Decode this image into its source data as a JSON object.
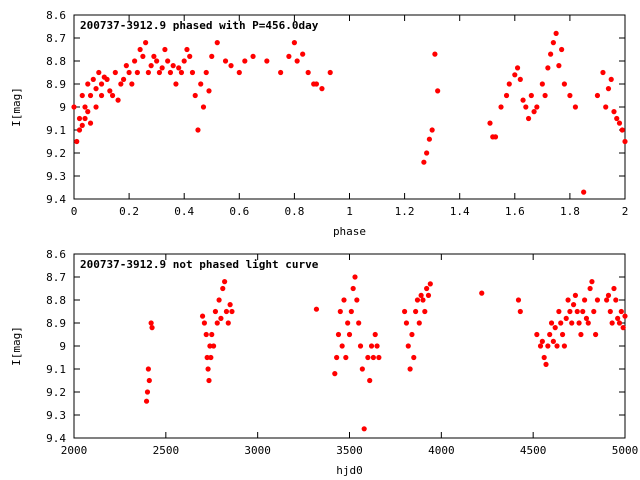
{
  "chart_data": [
    {
      "type": "scatter",
      "title": "200737-3912.9 phased with P=456.0day",
      "xlabel": "phase",
      "ylabel": "I[mag]",
      "xlim": [
        0,
        2
      ],
      "ylim": [
        9.4,
        8.6
      ],
      "y_inverted": true,
      "x_ticks": [
        "0",
        "0.2",
        "0.4",
        "0.6",
        "0.8",
        "1",
        "1.2",
        "1.4",
        "1.6",
        "1.8",
        "2"
      ],
      "y_ticks": [
        "8.6",
        "8.7",
        "8.8",
        "8.9",
        "9",
        "9.1",
        "9.2",
        "9.3",
        "9.4"
      ],
      "grid": false,
      "marker": "filled circle",
      "color": "#ff0000",
      "series": [
        {
          "x": [
            0.0,
            0.01,
            0.02,
            0.02,
            0.03,
            0.03,
            0.04,
            0.04,
            0.05,
            0.05,
            0.06,
            0.06,
            0.07,
            0.08,
            0.08,
            0.09,
            0.1,
            0.1,
            0.11,
            0.12,
            0.13,
            0.14,
            0.15,
            0.16,
            0.17,
            0.18,
            0.19,
            0.2,
            0.21,
            0.22,
            0.23,
            0.24,
            0.25,
            0.26,
            0.27,
            0.28,
            0.29,
            0.3,
            0.31,
            0.32,
            0.33,
            0.34,
            0.35,
            0.36,
            0.37,
            0.38,
            0.39,
            0.4,
            0.41,
            0.42,
            0.43,
            0.44,
            0.45,
            0.46,
            0.47,
            0.48,
            0.49,
            0.5,
            0.52,
            0.55,
            0.57,
            0.6,
            0.62,
            0.65,
            0.7,
            0.75,
            0.78,
            0.8,
            0.81,
            0.83,
            0.85,
            0.87,
            0.88,
            0.9,
            0.93,
            1.27,
            1.28,
            1.29,
            1.3,
            1.31,
            1.32,
            1.51,
            1.52,
            1.53,
            1.55,
            1.57,
            1.58,
            1.6,
            1.61,
            1.62,
            1.63,
            1.64,
            1.65,
            1.66,
            1.67,
            1.68,
            1.7,
            1.71,
            1.72,
            1.73,
            1.74,
            1.75,
            1.76,
            1.77,
            1.78,
            1.8,
            1.82,
            1.85,
            1.9,
            1.92,
            1.93,
            1.94,
            1.95,
            1.96,
            1.97,
            1.98,
            1.99,
            2.0
          ],
          "y": [
            9.0,
            9.15,
            9.05,
            9.1,
            8.95,
            9.08,
            9.0,
            9.05,
            8.9,
            9.02,
            8.95,
            9.07,
            8.88,
            8.92,
            9.0,
            8.85,
            8.9,
            8.95,
            8.87,
            8.88,
            8.93,
            8.95,
            8.85,
            8.97,
            8.9,
            8.88,
            8.82,
            8.85,
            8.9,
            8.8,
            8.85,
            8.75,
            8.78,
            8.72,
            8.85,
            8.82,
            8.78,
            8.8,
            8.85,
            8.83,
            8.75,
            8.8,
            8.85,
            8.82,
            8.9,
            8.83,
            8.85,
            8.8,
            8.75,
            8.78,
            8.85,
            8.95,
            9.1,
            8.9,
            9.0,
            8.85,
            8.93,
            8.78,
            8.72,
            8.8,
            8.82,
            8.85,
            8.8,
            8.78,
            8.8,
            8.85,
            8.78,
            8.72,
            8.8,
            8.77,
            8.85,
            8.9,
            8.9,
            8.92,
            8.85,
            9.24,
            9.2,
            9.14,
            9.1,
            8.77,
            8.93,
            9.07,
            9.13,
            9.13,
            9.0,
            8.95,
            8.9,
            8.86,
            8.83,
            8.88,
            8.97,
            9.0,
            9.05,
            8.95,
            9.02,
            9.0,
            8.9,
            8.95,
            8.83,
            8.77,
            8.72,
            8.68,
            8.82,
            8.75,
            8.9,
            8.95,
            9.0,
            9.37,
            8.95,
            8.85,
            9.0,
            8.92,
            8.88,
            9.02,
            9.05,
            9.07,
            9.1,
            9.15
          ]
        }
      ]
    },
    {
      "type": "scatter",
      "title": "200737-3912.9 not phased light curve",
      "xlabel": "hjd0",
      "ylabel": "I[mag]",
      "xlim": [
        2000,
        5000
      ],
      "ylim": [
        9.4,
        8.6
      ],
      "y_inverted": true,
      "x_ticks": [
        "2000",
        "2500",
        "3000",
        "3500",
        "4000",
        "4500",
        "5000"
      ],
      "y_ticks": [
        "8.6",
        "8.7",
        "8.8",
        "8.9",
        "9",
        "9.1",
        "9.2",
        "9.3",
        "9.4"
      ],
      "grid": false,
      "marker": "filled circle",
      "color": "#ff0000",
      "series": [
        {
          "x": [
            2395,
            2400,
            2405,
            2410,
            2420,
            2425,
            2700,
            2710,
            2720,
            2725,
            2730,
            2735,
            2740,
            2745,
            2750,
            2760,
            2770,
            2780,
            2790,
            2800,
            2810,
            2820,
            2830,
            2840,
            2850,
            2860,
            3320,
            3420,
            3430,
            3440,
            3450,
            3460,
            3470,
            3480,
            3490,
            3500,
            3510,
            3520,
            3530,
            3540,
            3550,
            3560,
            3570,
            3580,
            3600,
            3610,
            3620,
            3630,
            3640,
            3650,
            3660,
            3800,
            3810,
            3820,
            3830,
            3840,
            3850,
            3860,
            3870,
            3880,
            3890,
            3900,
            3910,
            3920,
            3930,
            3940,
            4220,
            4420,
            4430,
            4520,
            4540,
            4550,
            4560,
            4570,
            4580,
            4590,
            4600,
            4610,
            4620,
            4630,
            4640,
            4650,
            4660,
            4670,
            4680,
            4690,
            4700,
            4710,
            4720,
            4730,
            4740,
            4750,
            4760,
            4770,
            4780,
            4790,
            4800,
            4810,
            4820,
            4830,
            4840,
            4850,
            4900,
            4910,
            4920,
            4930,
            4940,
            4950,
            4960,
            4970,
            4980,
            4990,
            5000
          ],
          "y": [
            9.24,
            9.2,
            9.1,
            9.15,
            8.9,
            8.92,
            8.87,
            8.9,
            8.95,
            9.05,
            9.1,
            9.15,
            9.0,
            9.05,
            8.95,
            9.0,
            8.85,
            8.9,
            8.8,
            8.88,
            8.75,
            8.72,
            8.85,
            8.9,
            8.82,
            8.85,
            8.84,
            9.12,
            9.05,
            8.95,
            8.85,
            9.0,
            8.8,
            9.05,
            8.9,
            8.95,
            8.85,
            8.75,
            8.7,
            8.8,
            8.9,
            9.0,
            9.1,
            9.36,
            9.05,
            9.15,
            9.0,
            9.05,
            8.95,
            9.0,
            9.05,
            8.85,
            8.9,
            9.0,
            9.1,
            8.95,
            9.05,
            8.85,
            8.8,
            8.9,
            8.78,
            8.8,
            8.85,
            8.75,
            8.78,
            8.73,
            8.77,
            8.8,
            8.85,
            8.95,
            9.0,
            8.98,
            9.05,
            9.08,
            9.0,
            8.95,
            8.9,
            8.98,
            8.92,
            9.0,
            8.85,
            8.9,
            8.95,
            9.0,
            8.88,
            8.8,
            8.85,
            8.9,
            8.82,
            8.78,
            8.85,
            8.9,
            8.95,
            8.85,
            8.8,
            8.88,
            8.9,
            8.75,
            8.72,
            8.85,
            8.95,
            8.8,
            8.8,
            8.78,
            8.85,
            8.9,
            8.75,
            8.8,
            8.88,
            8.9,
            8.85,
            8.92,
            8.87
          ]
        }
      ]
    }
  ]
}
